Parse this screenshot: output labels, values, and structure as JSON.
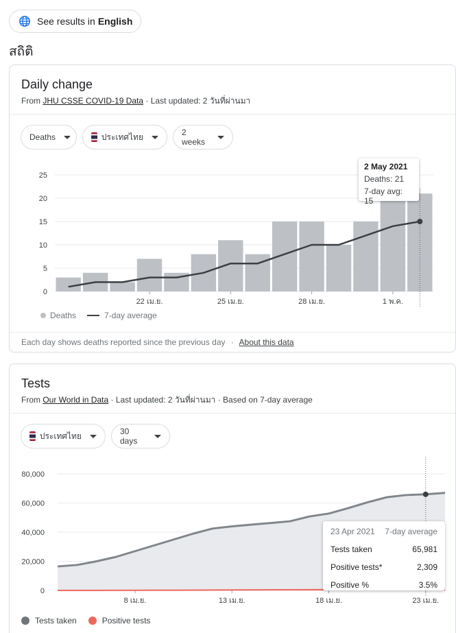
{
  "lang_button": {
    "prefix": "See results in",
    "language": "English",
    "icon": "globe-icon"
  },
  "section_title": "สถิติ",
  "daily": {
    "title": "Daily change",
    "source_prefix": "From",
    "source_link": "JHU CSSE COVID-19 Data",
    "source_suffix": "· Last updated: 2 วันที่ผ่านมา",
    "filters": {
      "metric": "Deaths",
      "country": "ประเทศไทย",
      "range": "2 weeks"
    },
    "tooltip": {
      "date": "2 May 2021",
      "deaths": "Deaths: 21",
      "avg": "7-day avg: 15"
    },
    "legend": {
      "bars": "Deaths",
      "line": "7-day average"
    },
    "footer_text": "Each day shows deaths reported since the previous day",
    "footer_sep": "·",
    "footer_link": "About this data"
  },
  "tests": {
    "title": "Tests",
    "source_prefix": "From",
    "source_link": "Our World in Data",
    "source_suffix": "· Last updated: 2 วันที่ผ่านมา · Based on 7-day average",
    "filters": {
      "country": "ประเทศไทย",
      "range": "30 days"
    },
    "tooltip": {
      "date": "23 Apr 2021",
      "mode": "7-day average",
      "rows": [
        {
          "label": "Tests taken",
          "value": "65,981"
        },
        {
          "label": "Positive tests*",
          "value": "2,309"
        },
        {
          "label": "Positive %",
          "value": "3.5%"
        }
      ]
    },
    "legend": {
      "tests": "Tests taken",
      "positive": "Positive tests"
    }
  },
  "colors": {
    "bar": "#bdc1c6",
    "line": "#3c4043",
    "area": "#e8eaed",
    "area_line": "#80868b",
    "positive": "#ee675c",
    "link_blue": "#1a73e8"
  },
  "chart_data": [
    {
      "type": "bar",
      "title": "Daily change",
      "categories": [
        "19 Apr",
        "20 Apr",
        "21 Apr",
        "22 Apr",
        "23 Apr",
        "24 Apr",
        "25 Apr",
        "26 Apr",
        "27 Apr",
        "28 Apr",
        "29 Apr",
        "30 Apr",
        "1 May",
        "2 May"
      ],
      "series": [
        {
          "name": "Deaths",
          "values": [
            3,
            4,
            2,
            7,
            4,
            8,
            11,
            8,
            15,
            15,
            10,
            15,
            20,
            21
          ]
        },
        {
          "name": "7-day average",
          "values": [
            1,
            2,
            2,
            3,
            3,
            4,
            6,
            6,
            8,
            10,
            10,
            12,
            14,
            15
          ]
        }
      ],
      "xticks": [
        {
          "index": 3,
          "label": "22 เม.ย."
        },
        {
          "index": 6,
          "label": "25 เม.ย."
        },
        {
          "index": 9,
          "label": "28 เม.ย."
        },
        {
          "index": 12,
          "label": "1 พ.ค."
        }
      ],
      "yticks": [
        "0",
        "5",
        "10",
        "15",
        "20",
        "25"
      ],
      "ylim": [
        0,
        25
      ],
      "highlight_index": 13
    },
    {
      "type": "area",
      "title": "Tests",
      "x": [
        "4 Apr",
        "5 Apr",
        "6 Apr",
        "7 Apr",
        "8 Apr",
        "9 Apr",
        "10 Apr",
        "11 Apr",
        "12 Apr",
        "13 Apr",
        "14 Apr",
        "15 Apr",
        "16 Apr",
        "17 Apr",
        "18 Apr",
        "19 Apr",
        "20 Apr",
        "21 Apr",
        "22 Apr",
        "23 Apr",
        "24 Apr"
      ],
      "series": [
        {
          "name": "Tests taken",
          "values": [
            16500,
            17500,
            20000,
            23000,
            27000,
            31000,
            35000,
            39000,
            42500,
            44000,
            45200,
            46300,
            47500,
            50800,
            52800,
            56500,
            60500,
            64000,
            65500,
            65981,
            67000
          ]
        },
        {
          "name": "Positive tests",
          "values": [
            60,
            70,
            80,
            100,
            120,
            150,
            200,
            250,
            300,
            350,
            400,
            450,
            500,
            550,
            600,
            800,
            1100,
            1500,
            1900,
            2309,
            2500
          ]
        }
      ],
      "xticks": [
        {
          "index": 4,
          "label": "8 เม.ย."
        },
        {
          "index": 9,
          "label": "13 เม.ย."
        },
        {
          "index": 14,
          "label": "18 เม.ย."
        },
        {
          "index": 19,
          "label": "23 เม.ย."
        }
      ],
      "yticks": [
        "0",
        "20,000",
        "40,000",
        "60,000",
        "80,000"
      ],
      "ylim": [
        0,
        80000
      ],
      "highlight_index": 19
    }
  ]
}
